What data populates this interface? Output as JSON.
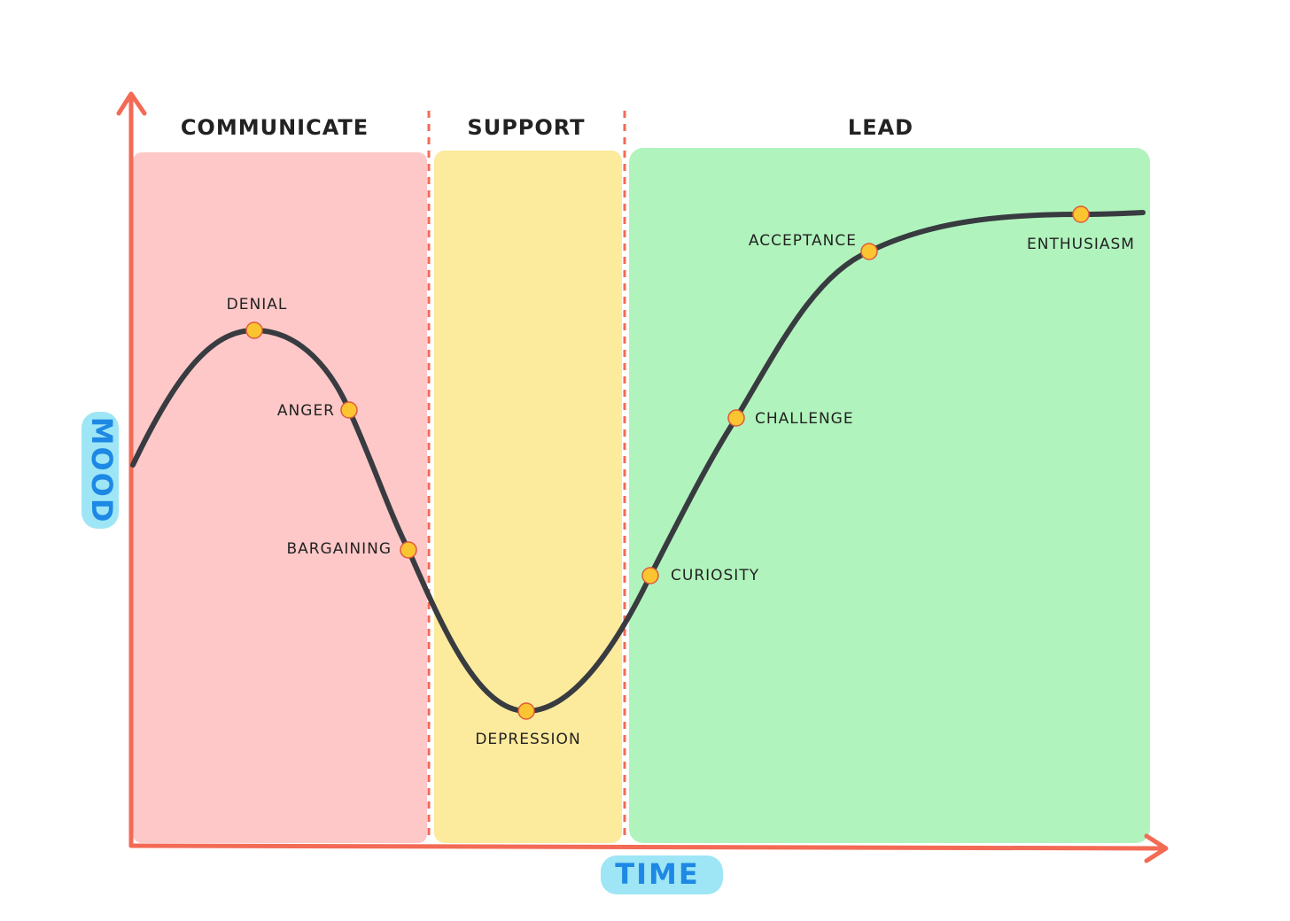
{
  "zones": [
    {
      "label": "COMMUNICATE"
    },
    {
      "label": "SUPPORT"
    },
    {
      "label": "LEAD"
    }
  ],
  "stages": [
    {
      "label": "DENIAL"
    },
    {
      "label": "ANGER"
    },
    {
      "label": "BARGAINING"
    },
    {
      "label": "DEPRESSION"
    },
    {
      "label": "CURIOSITY"
    },
    {
      "label": "CHALLENGE"
    },
    {
      "label": "ACCEPTANCE"
    },
    {
      "label": "ENTHUSIASM"
    }
  ],
  "axes": {
    "x_label": "TIME",
    "y_label": "MOOD"
  }
}
